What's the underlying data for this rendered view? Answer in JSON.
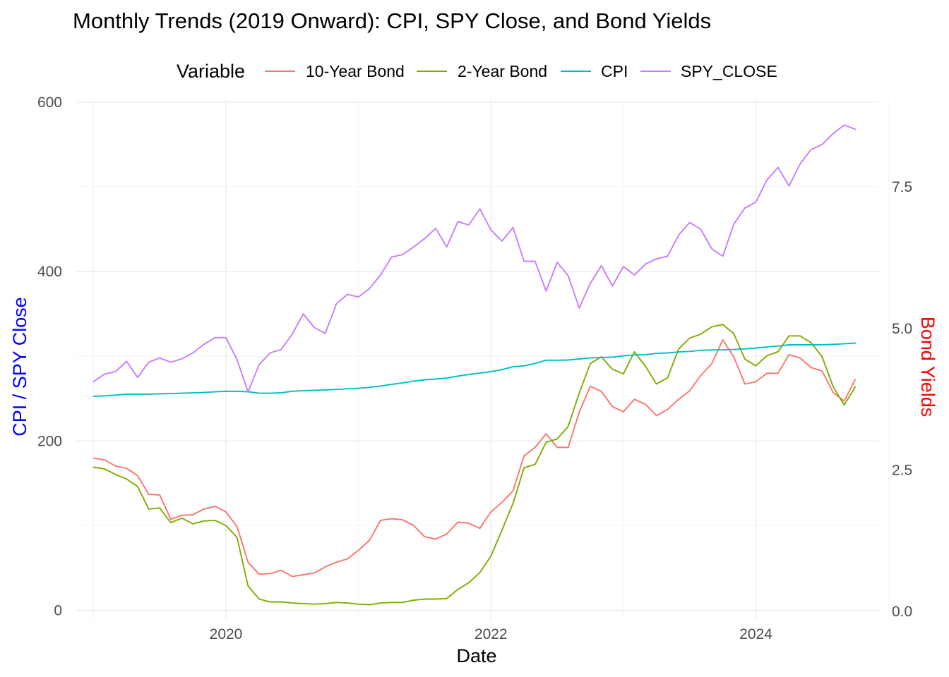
{
  "chart_data": {
    "type": "line",
    "title": "Monthly Trends (2019 Onward): CPI, SPY Close, and Bond Yields",
    "xlabel": "Date",
    "ylabel_left": "CPI / SPY Close",
    "ylabel_right": "Bond Yields",
    "ylabel_left_color": "#0000ff",
    "ylabel_right_color": "#ff0000",
    "x_start": "2019-01",
    "x_months": 70,
    "xlim": [
      2018.87,
      2024.93
    ],
    "x_ticks": [
      2020,
      2022,
      2024
    ],
    "x_tick_labels": [
      "2020",
      "2022",
      "2024"
    ],
    "ylim_left": [
      -12,
      604
    ],
    "y_ticks_left": [
      0,
      200,
      400,
      600
    ],
    "y_tick_labels_left": [
      "0",
      "200",
      "400",
      "600"
    ],
    "ylim_right": [
      -0.16,
      9.06
    ],
    "y_ticks_right": [
      0,
      2.5,
      5,
      7.5
    ],
    "y_tick_labels_right": [
      "0.0",
      "2.5",
      "5.0",
      "7.5"
    ],
    "grid": true,
    "legend_position": "top",
    "legend_title": "Variable",
    "series": [
      {
        "name": "10-Year Bond",
        "color": "#f8766d",
        "axis": "right",
        "values": [
          2.71,
          2.68,
          2.57,
          2.53,
          2.4,
          2.07,
          2.06,
          1.63,
          1.7,
          1.71,
          1.81,
          1.86,
          1.76,
          1.5,
          0.87,
          0.66,
          0.67,
          0.73,
          0.62,
          0.65,
          0.68,
          0.79,
          0.87,
          0.93,
          1.08,
          1.26,
          1.61,
          1.64,
          1.62,
          1.52,
          1.32,
          1.28,
          1.37,
          1.58,
          1.56,
          1.47,
          1.76,
          1.93,
          2.13,
          2.75,
          2.9,
          3.14,
          2.9,
          2.9,
          3.52,
          3.98,
          3.89,
          3.62,
          3.53,
          3.75,
          3.66,
          3.46,
          3.57,
          3.75,
          3.9,
          4.17,
          4.38,
          4.8,
          4.5,
          4.02,
          4.06,
          4.21,
          4.21,
          4.54,
          4.48,
          4.31,
          4.25,
          3.87,
          3.72,
          4.1
        ]
      },
      {
        "name": "2-Year Bond",
        "color": "#7cae00",
        "axis": "right",
        "values": [
          2.55,
          2.52,
          2.42,
          2.34,
          2.21,
          1.81,
          1.83,
          1.57,
          1.65,
          1.55,
          1.6,
          1.61,
          1.52,
          1.31,
          0.45,
          0.22,
          0.17,
          0.17,
          0.15,
          0.14,
          0.13,
          0.14,
          0.16,
          0.15,
          0.13,
          0.12,
          0.15,
          0.16,
          0.16,
          0.2,
          0.22,
          0.22,
          0.23,
          0.39,
          0.51,
          0.69,
          0.98,
          1.44,
          1.91,
          2.54,
          2.6,
          2.99,
          3.05,
          3.27,
          3.86,
          4.38,
          4.5,
          4.28,
          4.2,
          4.59,
          4.33,
          4.02,
          4.13,
          4.64,
          4.83,
          4.9,
          5.03,
          5.07,
          4.91,
          4.46,
          4.34,
          4.52,
          4.59,
          4.87,
          4.87,
          4.75,
          4.5,
          3.97,
          3.65,
          3.97
        ]
      },
      {
        "name": "CPI",
        "color": "#00bfc4",
        "axis": "left",
        "values": [
          252.6,
          253.3,
          254.2,
          255.2,
          255.3,
          255.3,
          255.7,
          256.0,
          256.4,
          256.8,
          257.2,
          258.0,
          258.7,
          258.6,
          258.1,
          256.4,
          256.4,
          256.9,
          258.7,
          259.3,
          259.9,
          260.3,
          260.9,
          261.6,
          262.2,
          263.3,
          264.9,
          266.8,
          268.6,
          270.7,
          272.3,
          273.1,
          274.2,
          276.6,
          278.5,
          280.1,
          281.9,
          284.2,
          287.7,
          288.7,
          291.5,
          295.3,
          295.3,
          295.6,
          296.8,
          298.0,
          298.6,
          298.9,
          300.5,
          301.6,
          301.8,
          303.4,
          303.9,
          305.1,
          305.7,
          307.0,
          307.5,
          307.6,
          308.0,
          308.7,
          309.7,
          311.1,
          312.1,
          313.5,
          313.5,
          313.5,
          313.6,
          314.1,
          314.8,
          315.6
        ]
      },
      {
        "name": "SPY_CLOSE",
        "color": "#c77cff",
        "axis": "left",
        "values": [
          270,
          279,
          282,
          294,
          275,
          293,
          298,
          293,
          297,
          304,
          314,
          322,
          322,
          296,
          258,
          290,
          304,
          308,
          326,
          350,
          334,
          327,
          362,
          373,
          370,
          380,
          396,
          417,
          420,
          429,
          439,
          451,
          429,
          459,
          455,
          474,
          449,
          436,
          452,
          412,
          412,
          377,
          411,
          395,
          357,
          386,
          407,
          383,
          406,
          396,
          409,
          415,
          418,
          443,
          458,
          450,
          427,
          418,
          456,
          475,
          482,
          508,
          523,
          501,
          527,
          544,
          550,
          563,
          573,
          568
        ]
      }
    ]
  }
}
